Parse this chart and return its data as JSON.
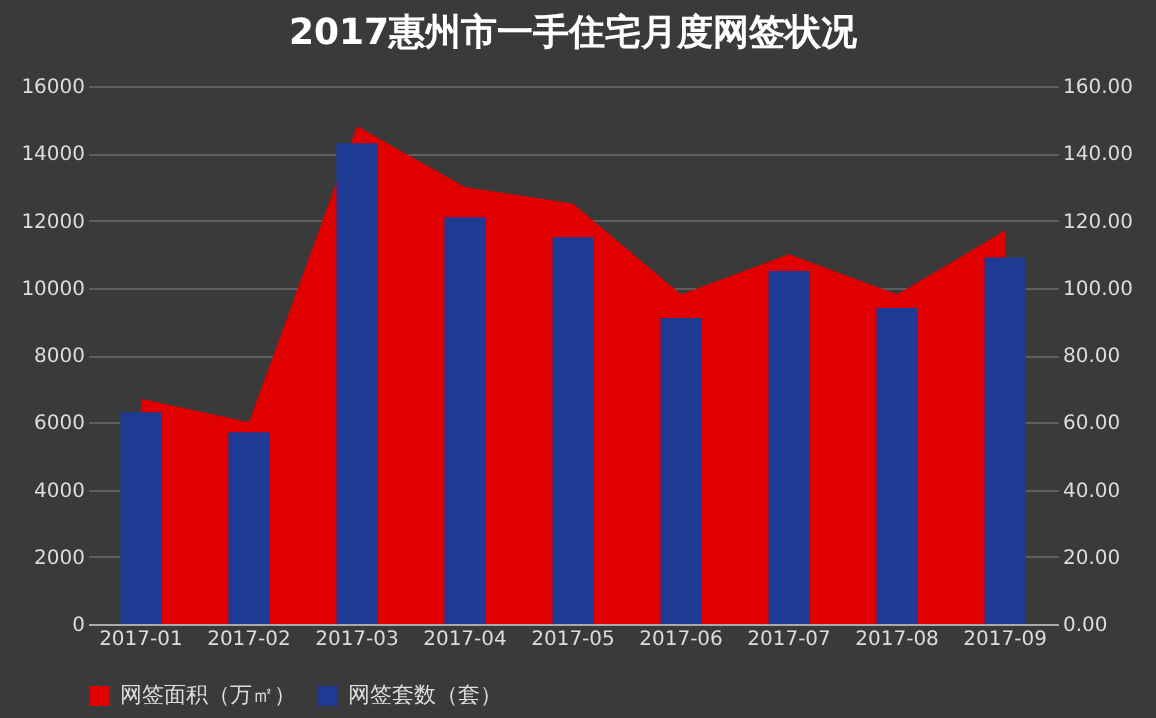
{
  "chart_data": {
    "type": "bar",
    "title": "2017惠州市一手住宅月度网签状况",
    "categories": [
      "2017-01",
      "2017-02",
      "2017-03",
      "2017-04",
      "2017-05",
      "2017-06",
      "2017-07",
      "2017-08",
      "2017-09"
    ],
    "series": [
      {
        "name": "网签面积（万㎡）",
        "type": "area",
        "axis": "y2",
        "color": "#e00000",
        "values": [
          67,
          60,
          148,
          130,
          125,
          98,
          110,
          98,
          117
        ]
      },
      {
        "name": "网签套数（套）",
        "color": "#1f3a93",
        "values": [
          6300,
          5700,
          14300,
          12100,
          11500,
          9100,
          10500,
          9400,
          10900
        ]
      }
    ],
    "ylim": [
      0,
      16000
    ],
    "yticks": [
      0,
      2000,
      4000,
      6000,
      8000,
      10000,
      12000,
      14000,
      16000
    ],
    "y2lim": [
      0,
      160
    ],
    "y2ticks": [
      {
        "value": 0,
        "label": "0.00"
      },
      {
        "value": 20,
        "label": "20.00"
      },
      {
        "value": 40,
        "label": "40.00"
      },
      {
        "value": 60,
        "label": "60.00"
      },
      {
        "value": 80,
        "label": "80.00"
      },
      {
        "value": 100,
        "label": "100.00"
      },
      {
        "value": 120,
        "label": "120.00"
      },
      {
        "value": 140,
        "label": "140.00"
      },
      {
        "value": 160,
        "label": "160.00"
      }
    ],
    "grid": "y",
    "legend": "bottom"
  }
}
